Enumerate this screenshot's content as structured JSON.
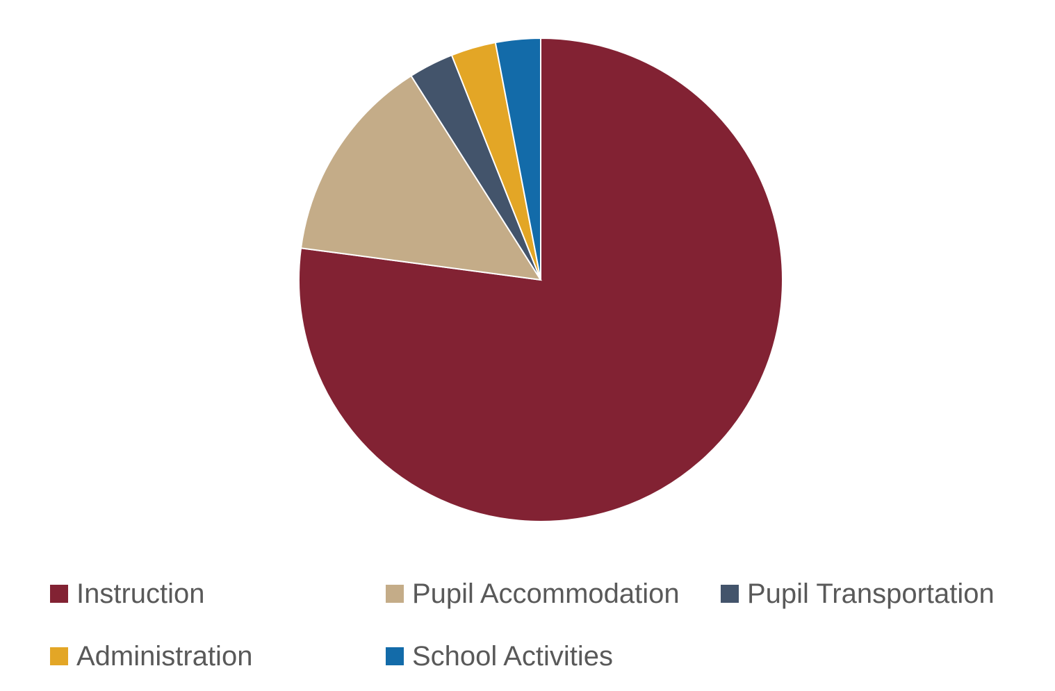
{
  "chart_data": {
    "type": "pie",
    "title": "",
    "legend_position": "bottom",
    "categories": [
      "Instruction",
      "Pupil Accommodation",
      "Pupil Transportation",
      "Administration",
      "School Activities"
    ],
    "values": [
      77.1,
      13.9,
      3.0,
      3.0,
      3.0
    ],
    "unit": "%",
    "colors": [
      "#822233",
      "#C4AC88",
      "#43546B",
      "#E3A626",
      "#136BA9"
    ]
  }
}
